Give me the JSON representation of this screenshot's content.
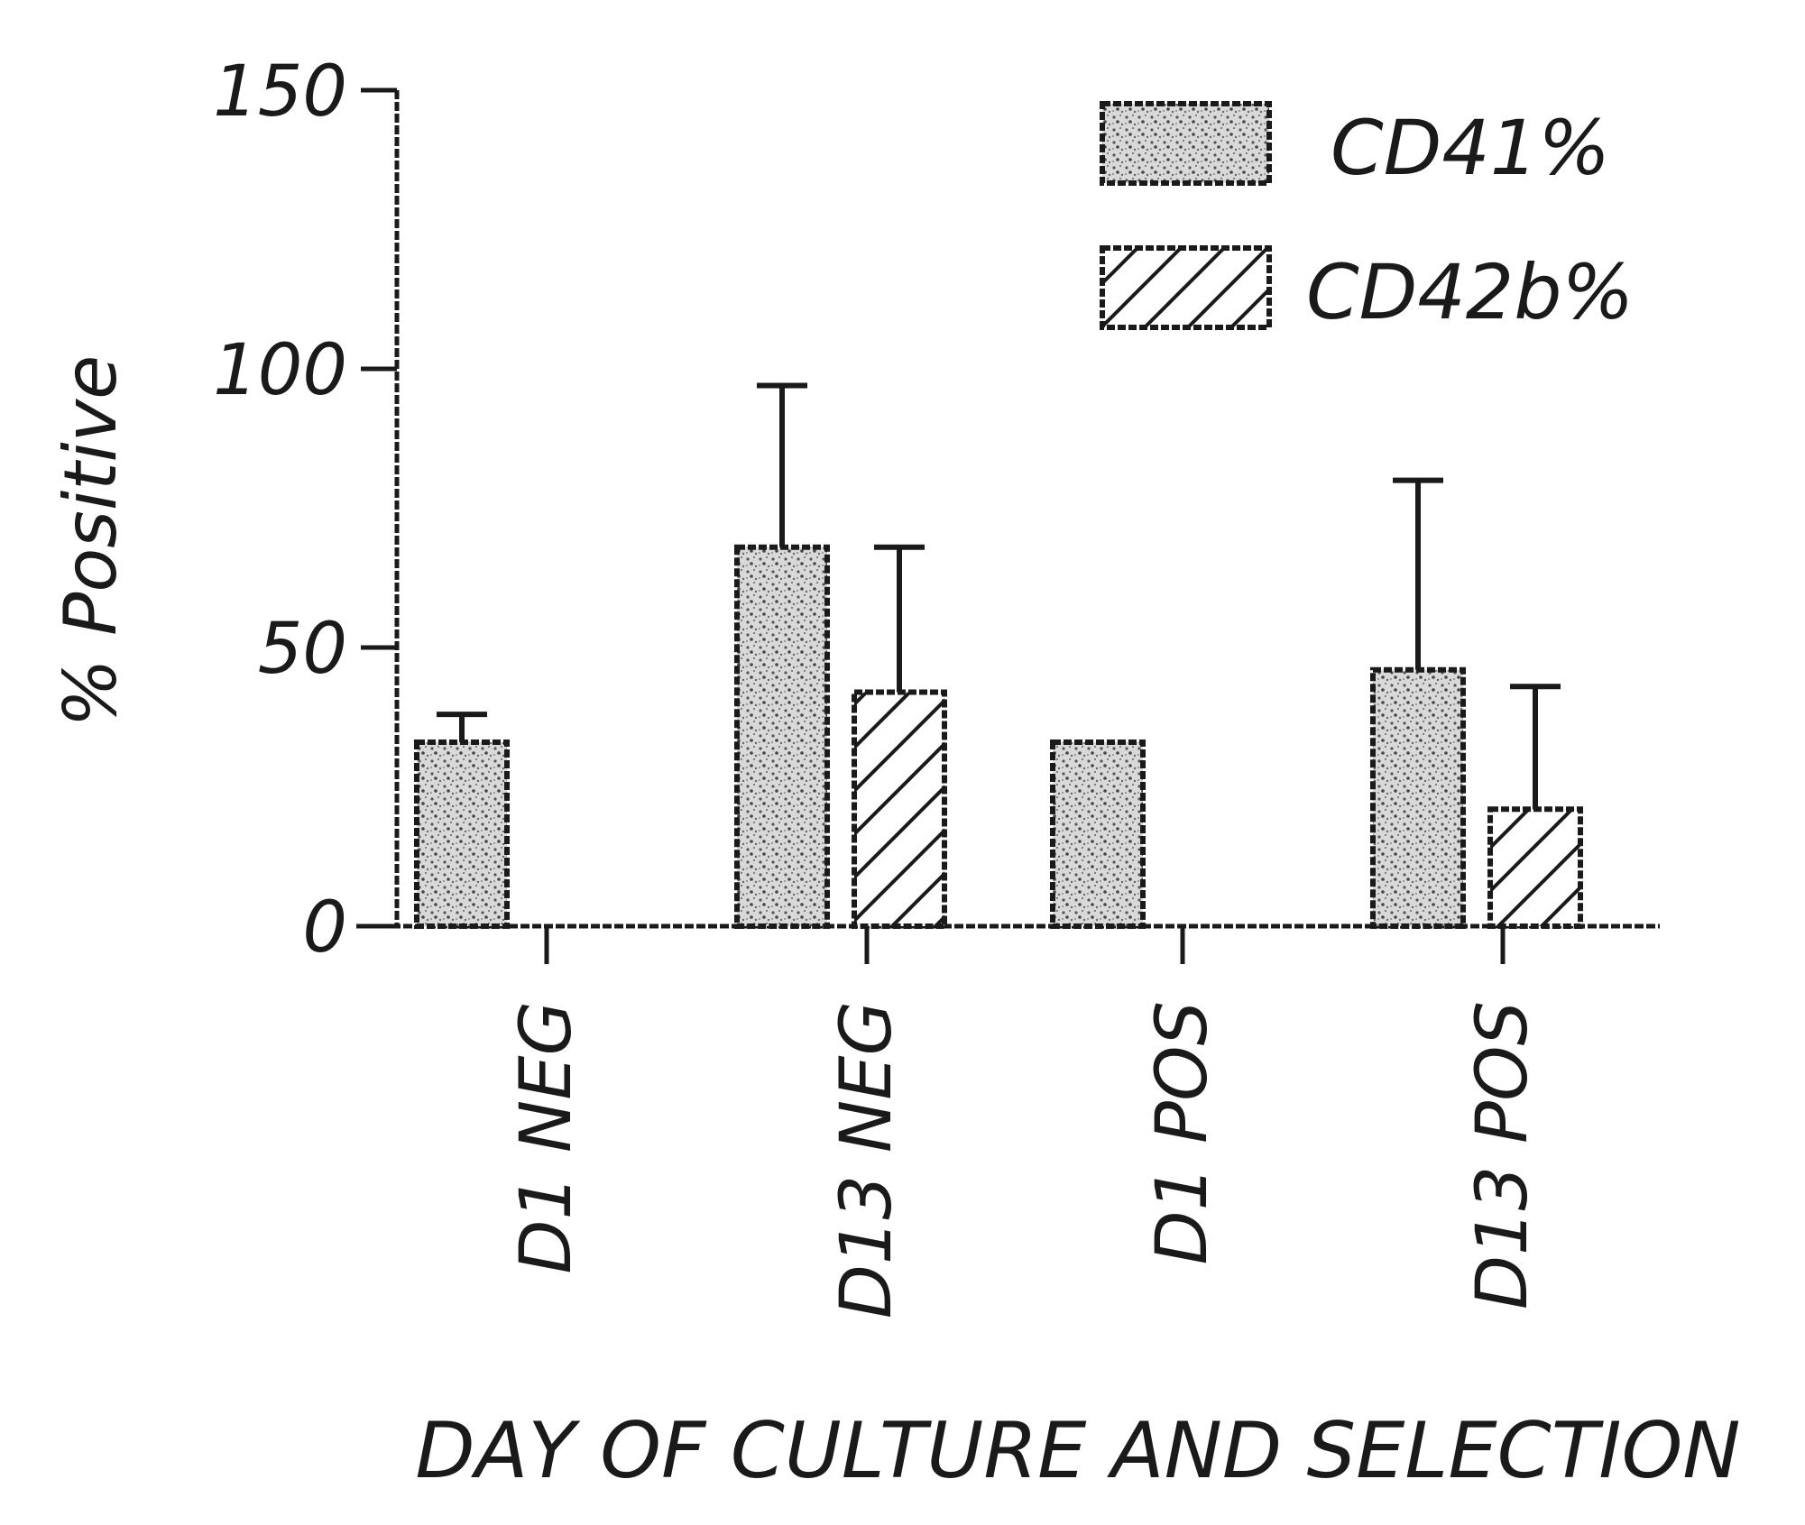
{
  "chart_data": {
    "type": "bar",
    "title": "",
    "xlabel": "DAY OF CULTURE AND SELECTION",
    "ylabel": "% Positive",
    "ylim": [
      0,
      150
    ],
    "yticks": [
      "0",
      "50",
      "100",
      "150"
    ],
    "categories": [
      "D1 NEG",
      "D13 NEG",
      "D1 POS",
      "D13 POS"
    ],
    "series": [
      {
        "name": "CD41%",
        "pattern": "stipple",
        "values": [
          33,
          68,
          33,
          46
        ],
        "error_upper": [
          5,
          29,
          0,
          34
        ]
      },
      {
        "name": "CD42b%",
        "pattern": "hatch",
        "values": [
          0,
          42,
          0,
          21
        ],
        "error_upper": [
          0,
          26,
          0,
          22
        ]
      }
    ],
    "legend_position": "top-right",
    "grid": false,
    "colors": {
      "ink": "#1a1a1a",
      "fill": "#c8c8c8",
      "background": "#ffffff"
    }
  }
}
